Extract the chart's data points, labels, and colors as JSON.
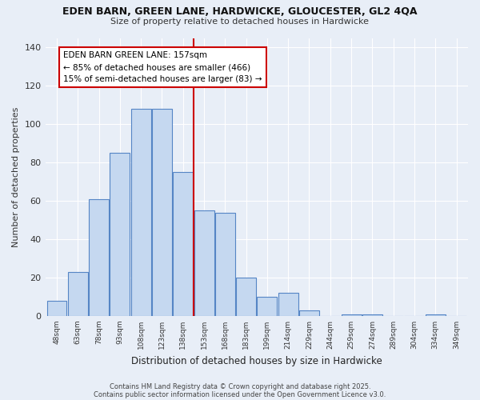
{
  "title": "EDEN BARN, GREEN LANE, HARDWICKE, GLOUCESTER, GL2 4QA",
  "subtitle": "Size of property relative to detached houses in Hardwicke",
  "xlabel": "Distribution of detached houses by size in Hardwicke",
  "ylabel": "Number of detached properties",
  "bar_labels": [
    "48sqm",
    "63sqm",
    "78sqm",
    "93sqm",
    "108sqm",
    "123sqm",
    "138sqm",
    "153sqm",
    "168sqm",
    "183sqm",
    "199sqm",
    "214sqm",
    "229sqm",
    "244sqm",
    "259sqm",
    "274sqm",
    "289sqm",
    "304sqm",
    "334sqm",
    "349sqm"
  ],
  "bar_values": [
    8,
    23,
    61,
    85,
    108,
    108,
    75,
    55,
    54,
    20,
    10,
    12,
    3,
    0,
    1,
    1,
    0,
    0,
    1,
    0
  ],
  "bar_color": "#c5d8f0",
  "bar_edgecolor": "#5585c5",
  "vline_color": "#cc0000",
  "annotation_title": "EDEN BARN GREEN LANE: 157sqm",
  "annotation_line1": "← 85% of detached houses are smaller (466)",
  "annotation_line2": "15% of semi-detached houses are larger (83) →",
  "annotation_box_color": "#cc0000",
  "background_color": "#e8eef7",
  "ylim": [
    0,
    145
  ],
  "yticks": [
    0,
    20,
    40,
    60,
    80,
    100,
    120,
    140
  ],
  "footer1": "Contains HM Land Registry data © Crown copyright and database right 2025.",
  "footer2": "Contains public sector information licensed under the Open Government Licence v3.0."
}
